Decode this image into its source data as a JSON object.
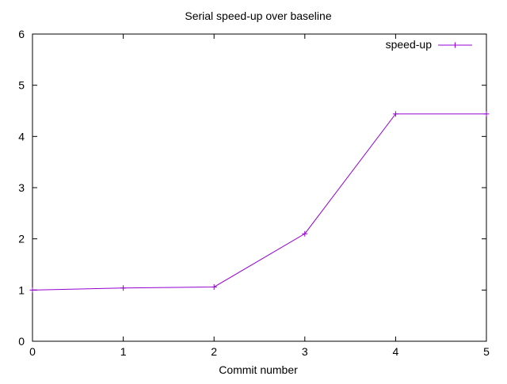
{
  "chart_data": {
    "type": "line",
    "title": "Serial speed-up over baseline",
    "xlabel": "Commit number",
    "ylabel": "",
    "xlim": [
      0,
      5
    ],
    "ylim": [
      0,
      6
    ],
    "xticks": [
      "0",
      "1",
      "2",
      "3",
      "4",
      "5"
    ],
    "yticks": [
      "0",
      "1",
      "2",
      "3",
      "4",
      "5",
      "6"
    ],
    "grid": false,
    "legend_position": "top-right",
    "series": [
      {
        "name": "speed-up",
        "color": "#9400d3",
        "marker": "plus",
        "x": [
          0,
          1,
          2,
          3,
          4,
          5
        ],
        "y": [
          1.0,
          1.04,
          1.06,
          2.1,
          4.44,
          4.44
        ]
      }
    ]
  }
}
